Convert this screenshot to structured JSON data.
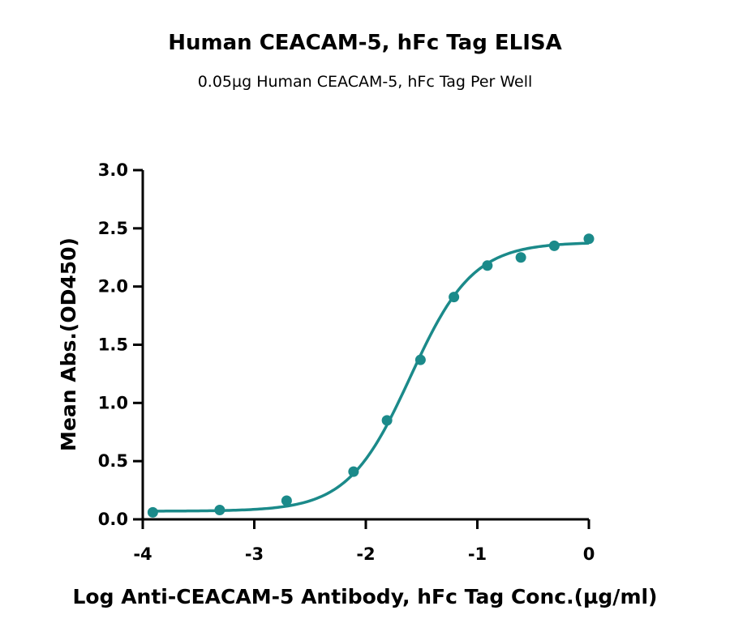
{
  "chart_data": {
    "type": "scatter",
    "title": "Human CEACAM-5, hFc Tag ELISA",
    "subtitle": "0.05µg Human CEACAM-5, hFc Tag Per Well",
    "xlabel": "Log Anti-CEACAM-5 Antibody, hFc Tag Conc.(µg/ml)",
    "ylabel": "Mean Abs.(OD450)",
    "xlim": [
      -4,
      0
    ],
    "ylim": [
      0,
      3.0
    ],
    "xticks": [
      "-4",
      "-3",
      "-2",
      "-1",
      "0"
    ],
    "yticks": [
      "0.0",
      "0.5",
      "1.0",
      "1.5",
      "2.0",
      "2.5",
      "3.0"
    ],
    "grid": false,
    "series": [
      {
        "color": "#1b8a8a",
        "x": [
          -3.91,
          -3.31,
          -2.71,
          -2.11,
          -1.81,
          -1.51,
          -1.21,
          -0.91,
          -0.61,
          -0.31,
          0.0
        ],
        "y": [
          0.06,
          0.08,
          0.16,
          0.41,
          0.85,
          1.37,
          1.91,
          2.18,
          2.25,
          2.35,
          2.41
        ],
        "fit": {
          "type": "4PL",
          "bottom": 0.07,
          "top": 2.38,
          "log_ec50": -1.6,
          "hill": 1.55
        }
      }
    ]
  }
}
